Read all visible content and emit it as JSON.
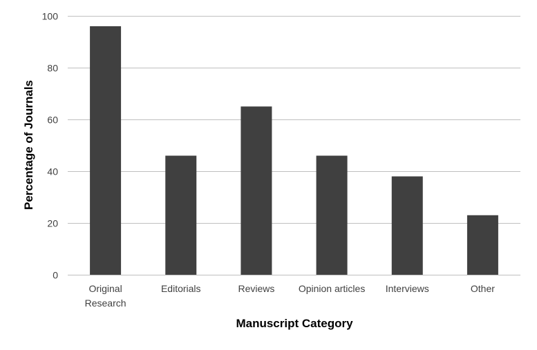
{
  "chart_data": {
    "type": "bar",
    "title": "",
    "xlabel": "Manuscript Category",
    "ylabel": "Percentage of Journals",
    "categories": [
      [
        "Original",
        "Research"
      ],
      [
        "Editorials"
      ],
      [
        "Reviews"
      ],
      [
        "Opinion articles"
      ],
      [
        "Interviews"
      ],
      [
        "Other"
      ]
    ],
    "values": [
      96,
      46,
      65,
      46,
      38,
      23
    ],
    "ylim": [
      0,
      100
    ],
    "yticks": [
      "0",
      "20",
      "40",
      "60",
      "80",
      "100"
    ],
    "grid": true,
    "legend": "none",
    "colors": {
      "bar": "#404040",
      "grid": "#bfbfbf",
      "axis": "#bfbfbf"
    }
  }
}
